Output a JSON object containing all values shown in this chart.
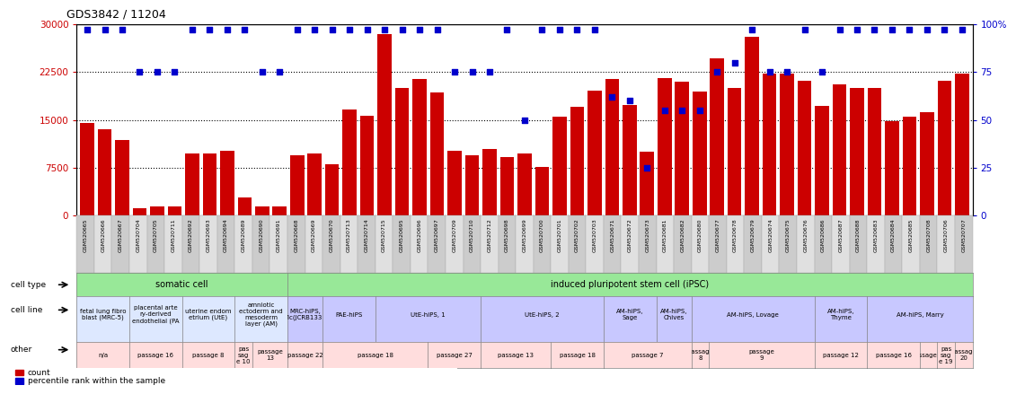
{
  "title": "GDS3842 / 11204",
  "samples": [
    "GSM520665",
    "GSM520666",
    "GSM520667",
    "GSM520704",
    "GSM520705",
    "GSM520711",
    "GSM520692",
    "GSM520693",
    "GSM520694",
    "GSM520689",
    "GSM520690",
    "GSM520691",
    "GSM520668",
    "GSM520669",
    "GSM520670",
    "GSM520713",
    "GSM520714",
    "GSM520715",
    "GSM520695",
    "GSM520696",
    "GSM520697",
    "GSM520709",
    "GSM520710",
    "GSM520712",
    "GSM520698",
    "GSM520699",
    "GSM520700",
    "GSM520701",
    "GSM520702",
    "GSM520703",
    "GSM520671",
    "GSM520672",
    "GSM520673",
    "GSM520681",
    "GSM520682",
    "GSM520680",
    "GSM520677",
    "GSM520678",
    "GSM520679",
    "GSM520674",
    "GSM520675",
    "GSM520676",
    "GSM520686",
    "GSM520687",
    "GSM520688",
    "GSM520683",
    "GSM520684",
    "GSM520685",
    "GSM520708",
    "GSM520706",
    "GSM520707"
  ],
  "bar_heights": [
    14500,
    13500,
    11800,
    1200,
    1400,
    1400,
    9800,
    9800,
    10200,
    2800,
    1400,
    1400,
    9500,
    9800,
    8000,
    16700,
    15700,
    28500,
    20000,
    21400,
    19300,
    10200,
    9500,
    10500,
    9200,
    9800,
    7600,
    15500,
    17000,
    19600,
    21400,
    17300,
    10000,
    21500,
    21000,
    19500,
    24600,
    20000,
    28000,
    22200,
    22300,
    21200,
    17200,
    20600,
    20000,
    20000,
    14800,
    15500,
    16200,
    21200,
    22200
  ],
  "percentile_ranks": [
    97,
    97,
    97,
    75,
    75,
    75,
    97,
    97,
    97,
    97,
    75,
    75,
    97,
    97,
    97,
    97,
    97,
    97,
    97,
    97,
    97,
    75,
    75,
    75,
    97,
    50,
    97,
    97,
    97,
    97,
    62,
    60,
    25,
    55,
    55,
    55,
    75,
    80,
    97,
    75,
    75,
    97,
    75,
    97,
    97,
    97,
    97,
    97,
    97,
    97,
    97
  ],
  "bar_color": "#cc0000",
  "dot_color": "#0000cc",
  "ylim_left": [
    0,
    30000
  ],
  "yticks_left": [
    0,
    7500,
    15000,
    22500,
    30000
  ],
  "ylim_right": [
    0,
    100
  ],
  "yticks_right": [
    0,
    25,
    50,
    75,
    100
  ],
  "cell_line_groups": [
    {
      "label": "fetal lung fibro\nblast (MRC-5)",
      "start": 0,
      "end": 3,
      "color": "#dde8ff"
    },
    {
      "label": "placental arte\nry-derived\nendothelial (PA",
      "start": 3,
      "end": 6,
      "color": "#dde8ff"
    },
    {
      "label": "uterine endom\netrium (UtE)",
      "start": 6,
      "end": 9,
      "color": "#dde8ff"
    },
    {
      "label": "amniotic\nectoderm and\nmesoderm\nlayer (AM)",
      "start": 9,
      "end": 12,
      "color": "#dde8ff"
    },
    {
      "label": "MRC-hiPS,\nTic(JCRB1331",
      "start": 12,
      "end": 14,
      "color": "#c8c8ff"
    },
    {
      "label": "PAE-hiPS",
      "start": 14,
      "end": 17,
      "color": "#c8c8ff"
    },
    {
      "label": "UtE-hiPS, 1",
      "start": 17,
      "end": 23,
      "color": "#c8c8ff"
    },
    {
      "label": "UtE-hiPS, 2",
      "start": 23,
      "end": 30,
      "color": "#c8c8ff"
    },
    {
      "label": "AM-hiPS,\nSage",
      "start": 30,
      "end": 33,
      "color": "#c8c8ff"
    },
    {
      "label": "AM-hiPS,\nChives",
      "start": 33,
      "end": 35,
      "color": "#c8c8ff"
    },
    {
      "label": "AM-hiPS, Lovage",
      "start": 35,
      "end": 42,
      "color": "#c8c8ff"
    },
    {
      "label": "AM-hiPS,\nThyme",
      "start": 42,
      "end": 45,
      "color": "#c8c8ff"
    },
    {
      "label": "AM-hiPS, Marry",
      "start": 45,
      "end": 51,
      "color": "#c8c8ff"
    }
  ],
  "other_groups": [
    {
      "label": "n/a",
      "start": 0,
      "end": 3,
      "color": "#ffdddd"
    },
    {
      "label": "passage 16",
      "start": 3,
      "end": 6,
      "color": "#ffdddd"
    },
    {
      "label": "passage 8",
      "start": 6,
      "end": 9,
      "color": "#ffdddd"
    },
    {
      "label": "pas\nsag\ne 10",
      "start": 9,
      "end": 10,
      "color": "#ffdddd"
    },
    {
      "label": "passage\n13",
      "start": 10,
      "end": 12,
      "color": "#ffdddd"
    },
    {
      "label": "passage 22",
      "start": 12,
      "end": 14,
      "color": "#ffdddd"
    },
    {
      "label": "passage 18",
      "start": 14,
      "end": 20,
      "color": "#ffdddd"
    },
    {
      "label": "passage 27",
      "start": 20,
      "end": 23,
      "color": "#ffdddd"
    },
    {
      "label": "passage 13",
      "start": 23,
      "end": 27,
      "color": "#ffdddd"
    },
    {
      "label": "passage 18",
      "start": 27,
      "end": 30,
      "color": "#ffdddd"
    },
    {
      "label": "passage 7",
      "start": 30,
      "end": 35,
      "color": "#ffdddd"
    },
    {
      "label": "passage\n8",
      "start": 35,
      "end": 36,
      "color": "#ffdddd"
    },
    {
      "label": "passage\n9",
      "start": 36,
      "end": 42,
      "color": "#ffdddd"
    },
    {
      "label": "passage 12",
      "start": 42,
      "end": 45,
      "color": "#ffdddd"
    },
    {
      "label": "passage 16",
      "start": 45,
      "end": 48,
      "color": "#ffdddd"
    },
    {
      "label": "passage 15",
      "start": 48,
      "end": 49,
      "color": "#ffdddd"
    },
    {
      "label": "pas\nsag\ne 19",
      "start": 49,
      "end": 50,
      "color": "#ffdddd"
    },
    {
      "label": "passage\n20",
      "start": 50,
      "end": 51,
      "color": "#ffdddd"
    }
  ]
}
